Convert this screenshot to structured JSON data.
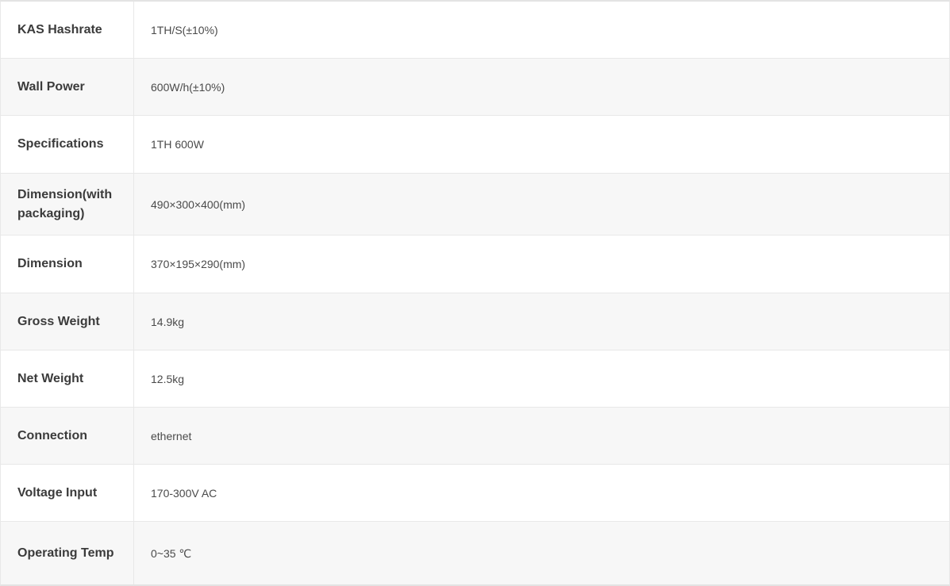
{
  "table": {
    "rows": [
      {
        "label": "KAS Hashrate",
        "value": "1TH/S(±10%)"
      },
      {
        "label": "Wall Power",
        "value": "600W/h(±10%)"
      },
      {
        "label": "Specifications",
        "value": "1TH 600W"
      },
      {
        "label": "Dimension(with packaging)",
        "value": "490×300×400(mm)"
      },
      {
        "label": "Dimension",
        "value": "370×195×290(mm)"
      },
      {
        "label": "Gross Weight",
        "value": "14.9kg"
      },
      {
        "label": "Net Weight",
        "value": "12.5kg"
      },
      {
        "label": "Connection",
        "value": "ethernet"
      },
      {
        "label": "Voltage Input",
        "value": "170-300V AC"
      },
      {
        "label": "Operating Temp",
        "value": "0~35 ℃"
      }
    ],
    "colors": {
      "row_bg": "#ffffff",
      "stripe_bg": "#f7f7f7",
      "border": "#e8e8e8",
      "outer_border": "#e3e3e3",
      "label_text": "#3b3b3b",
      "value_text": "#4a4a4a"
    }
  }
}
